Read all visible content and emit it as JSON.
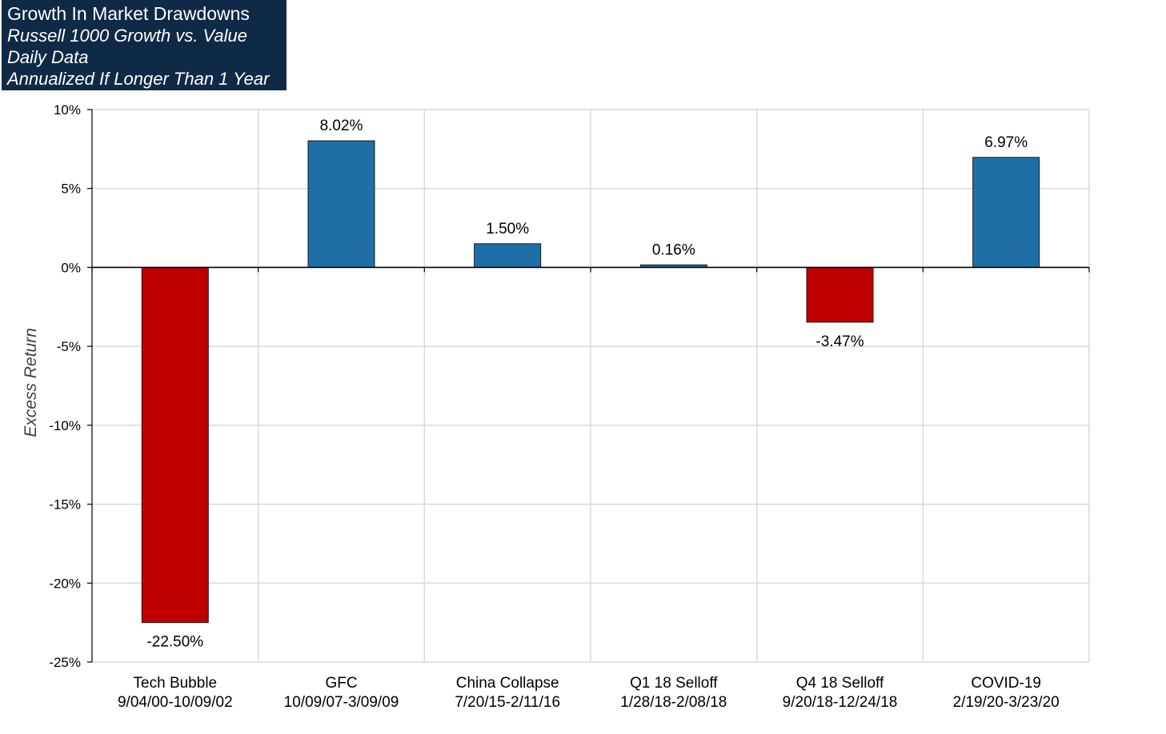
{
  "header": {
    "title": "Growth In Market Drawdowns",
    "subtitle_1": "Russell 1000 Growth vs. Value",
    "subtitle_2": "Daily Data",
    "subtitle_3": "Annualized If Longer Than 1 Year"
  },
  "colors": {
    "header_bg": "#0f2a47",
    "positive_bar": "#1f6fa6",
    "negative_bar": "#c00000",
    "grid": "#d9d9d9"
  },
  "chart_data": {
    "type": "bar",
    "title": "Growth In Market Drawdowns",
    "subtitle": "Russell 1000 Growth vs. Value / Daily Data / Annualized If Longer Than 1 Year",
    "xlabel": "",
    "ylabel": "Excess Return",
    "ylim": [
      -25,
      10
    ],
    "grid": true,
    "yticks": [
      "10%",
      "5%",
      "0%",
      "-5%",
      "-10%",
      "-15%",
      "-20%",
      "-25%"
    ],
    "categories": [
      {
        "name": "Tech Bubble",
        "dates": "9/04/00-10/09/02"
      },
      {
        "name": "GFC",
        "dates": "10/09/07-3/09/09"
      },
      {
        "name": "China Collapse",
        "dates": "7/20/15-2/11/16"
      },
      {
        "name": "Q1 18 Selloff",
        "dates": "1/28/18-2/08/18"
      },
      {
        "name": "Q4 18 Selloff",
        "dates": "9/20/18-12/24/18"
      },
      {
        "name": "COVID-19",
        "dates": "2/19/20-3/23/20"
      }
    ],
    "values": [
      -22.5,
      8.02,
      1.5,
      0.16,
      -3.47,
      6.97
    ],
    "data_labels": [
      "-22.50%",
      "8.02%",
      "1.50%",
      "0.16%",
      "-3.47%",
      "6.97%"
    ]
  }
}
